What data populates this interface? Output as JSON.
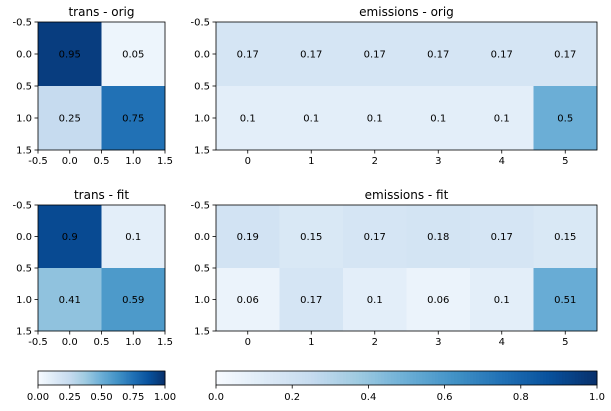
{
  "chart_data": [
    {
      "type": "heatmap",
      "title": "trans - orig",
      "colormap": "Blues",
      "vmin": 0,
      "vmax": 1,
      "values": [
        [
          0.95,
          0.05
        ],
        [
          0.25,
          0.75
        ]
      ],
      "cell_labels": [
        [
          "0.95",
          "0.05"
        ],
        [
          "0.25",
          "0.75"
        ]
      ],
      "xlim": [
        -0.5,
        1.5
      ],
      "ylim": [
        1.5,
        -0.5
      ],
      "xticks": [
        "-0.5",
        "0.0",
        "0.5",
        "1.0",
        "1.5"
      ],
      "yticks": [
        "-0.5",
        "0.0",
        "0.5",
        "1.0",
        "1.5"
      ]
    },
    {
      "type": "heatmap",
      "title": "emissions - orig",
      "colormap": "Blues",
      "vmin": 0,
      "vmax": 1,
      "values": [
        [
          0.17,
          0.17,
          0.17,
          0.17,
          0.17,
          0.17
        ],
        [
          0.1,
          0.1,
          0.1,
          0.1,
          0.1,
          0.5
        ]
      ],
      "cell_labels": [
        [
          "0.17",
          "0.17",
          "0.17",
          "0.17",
          "0.17",
          "0.17"
        ],
        [
          "0.1",
          "0.1",
          "0.1",
          "0.1",
          "0.1",
          "0.5"
        ]
      ],
      "xlim": [
        -0.5,
        5.5
      ],
      "ylim": [
        1.5,
        -0.5
      ],
      "xticks": [
        "0",
        "1",
        "2",
        "3",
        "4",
        "5"
      ],
      "yticks": [
        "-0.5",
        "0.0",
        "0.5",
        "1.0",
        "1.5"
      ]
    },
    {
      "type": "heatmap",
      "title": "trans - fit",
      "colormap": "Blues",
      "vmin": 0,
      "vmax": 1,
      "values": [
        [
          0.9,
          0.1
        ],
        [
          0.41,
          0.59
        ]
      ],
      "cell_labels": [
        [
          "0.9",
          "0.1"
        ],
        [
          "0.41",
          "0.59"
        ]
      ],
      "xlim": [
        -0.5,
        1.5
      ],
      "ylim": [
        1.5,
        -0.5
      ],
      "xticks": [
        "-0.5",
        "0.0",
        "0.5",
        "1.0",
        "1.5"
      ],
      "yticks": [
        "-0.5",
        "0.0",
        "0.5",
        "1.0",
        "1.5"
      ]
    },
    {
      "type": "heatmap",
      "title": "emissions - fit",
      "colormap": "Blues",
      "vmin": 0,
      "vmax": 1,
      "values": [
        [
          0.19,
          0.15,
          0.17,
          0.18,
          0.17,
          0.15
        ],
        [
          0.06,
          0.17,
          0.1,
          0.06,
          0.1,
          0.51
        ]
      ],
      "cell_labels": [
        [
          "0.19",
          "0.15",
          "0.17",
          "0.18",
          "0.17",
          "0.15"
        ],
        [
          "0.06",
          "0.17",
          "0.1",
          "0.06",
          "0.1",
          "0.51"
        ]
      ],
      "xlim": [
        -0.5,
        5.5
      ],
      "ylim": [
        1.5,
        -0.5
      ],
      "xticks": [
        "0",
        "1",
        "2",
        "3",
        "4",
        "5"
      ],
      "yticks": [
        "-0.5",
        "0.0",
        "0.5",
        "1.0",
        "1.5"
      ]
    }
  ],
  "colorbars": [
    {
      "orientation": "horizontal",
      "colormap": "Blues",
      "range": [
        0,
        1
      ],
      "ticks": [
        "0.00",
        "0.25",
        "0.50",
        "0.75",
        "1.00"
      ]
    },
    {
      "orientation": "horizontal",
      "colormap": "Blues",
      "range": [
        0,
        1
      ],
      "ticks": [
        "0.0",
        "0.2",
        "0.4",
        "0.6",
        "0.8",
        "1.0"
      ]
    }
  ]
}
